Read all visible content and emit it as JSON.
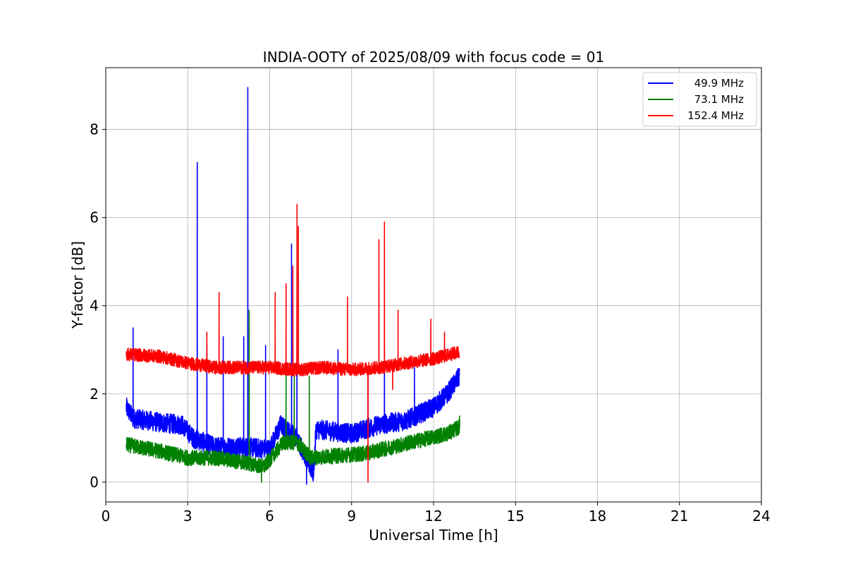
{
  "chart_data": {
    "type": "line",
    "title": "INDIA-OOTY of 2025/08/09 with focus code = 01",
    "xlabel": "Universal Time [h]",
    "ylabel": "Y-factor [dB]",
    "xlim": [
      0,
      24
    ],
    "ylim": [
      -0.45,
      9.4
    ],
    "xticks": [
      "0",
      "3",
      "6",
      "9",
      "12",
      "15",
      "18",
      "21",
      "24"
    ],
    "yticks": [
      "0",
      "2",
      "4",
      "6",
      "8"
    ],
    "grid": true,
    "legend_position": "top-right",
    "series": [
      {
        "name": "49.9 MHz",
        "color": "#0000ff",
        "baseline": [
          [
            0.75,
            1.7
          ],
          [
            1.0,
            1.45
          ],
          [
            2.0,
            1.35
          ],
          [
            2.8,
            1.3
          ],
          [
            3.2,
            1.0
          ],
          [
            4.0,
            0.8
          ],
          [
            5.0,
            0.8
          ],
          [
            6.0,
            0.75
          ],
          [
            6.4,
            1.3
          ],
          [
            7.0,
            1.0
          ],
          [
            7.6,
            0.2
          ],
          [
            7.7,
            1.2
          ],
          [
            9.0,
            1.1
          ],
          [
            10.0,
            1.3
          ],
          [
            11.0,
            1.4
          ],
          [
            12.0,
            1.7
          ],
          [
            12.5,
            2.0
          ],
          [
            12.95,
            2.4
          ]
        ],
        "noise": 0.45,
        "spikes": [
          [
            1.0,
            3.5
          ],
          [
            3.35,
            7.25
          ],
          [
            3.7,
            3.1
          ],
          [
            4.3,
            3.3
          ],
          [
            5.05,
            3.3
          ],
          [
            5.2,
            8.95
          ],
          [
            5.85,
            3.1
          ],
          [
            6.8,
            5.4
          ],
          [
            7.0,
            4.8
          ],
          [
            8.5,
            3.0
          ],
          [
            9.6,
            2.4
          ],
          [
            10.2,
            3.1
          ],
          [
            11.3,
            2.6
          ]
        ],
        "dips": [
          [
            7.35,
            -0.05
          ]
        ]
      },
      {
        "name": "73.1 MHz",
        "color": "#008000",
        "baseline": [
          [
            0.75,
            0.85
          ],
          [
            2.0,
            0.7
          ],
          [
            3.0,
            0.55
          ],
          [
            4.0,
            0.55
          ],
          [
            5.0,
            0.45
          ],
          [
            5.8,
            0.35
          ],
          [
            6.5,
            0.9
          ],
          [
            7.0,
            0.9
          ],
          [
            7.5,
            0.55
          ],
          [
            8.5,
            0.6
          ],
          [
            9.5,
            0.65
          ],
          [
            10.5,
            0.8
          ],
          [
            11.5,
            0.95
          ],
          [
            12.5,
            1.1
          ],
          [
            12.95,
            1.25
          ]
        ],
        "noise": 0.35,
        "spikes": [
          [
            5.25,
            3.9
          ],
          [
            6.6,
            2.6
          ],
          [
            6.9,
            2.4
          ],
          [
            7.45,
            2.4
          ],
          [
            12.95,
            1.5
          ]
        ],
        "dips": [
          [
            5.7,
            0.0
          ]
        ]
      },
      {
        "name": "152.4 MHz",
        "color": "#ff0000",
        "baseline": [
          [
            0.75,
            2.9
          ],
          [
            2.0,
            2.85
          ],
          [
            3.0,
            2.7
          ],
          [
            4.0,
            2.6
          ],
          [
            5.0,
            2.6
          ],
          [
            6.0,
            2.6
          ],
          [
            7.0,
            2.55
          ],
          [
            8.0,
            2.6
          ],
          [
            9.0,
            2.55
          ],
          [
            10.0,
            2.6
          ],
          [
            11.0,
            2.7
          ],
          [
            12.0,
            2.8
          ],
          [
            12.95,
            2.95
          ]
        ],
        "noise": 0.3,
        "spikes": [
          [
            3.7,
            3.4
          ],
          [
            4.15,
            4.3
          ],
          [
            6.2,
            4.3
          ],
          [
            6.6,
            4.5
          ],
          [
            6.85,
            4.9
          ],
          [
            7.0,
            6.3
          ],
          [
            7.05,
            5.8
          ],
          [
            8.85,
            4.2
          ],
          [
            10.0,
            5.5
          ],
          [
            10.2,
            5.9
          ],
          [
            10.7,
            3.9
          ],
          [
            11.9,
            3.7
          ],
          [
            12.4,
            3.4
          ]
        ],
        "dips": [
          [
            9.6,
            0.0
          ],
          [
            10.5,
            2.1
          ]
        ]
      }
    ]
  }
}
